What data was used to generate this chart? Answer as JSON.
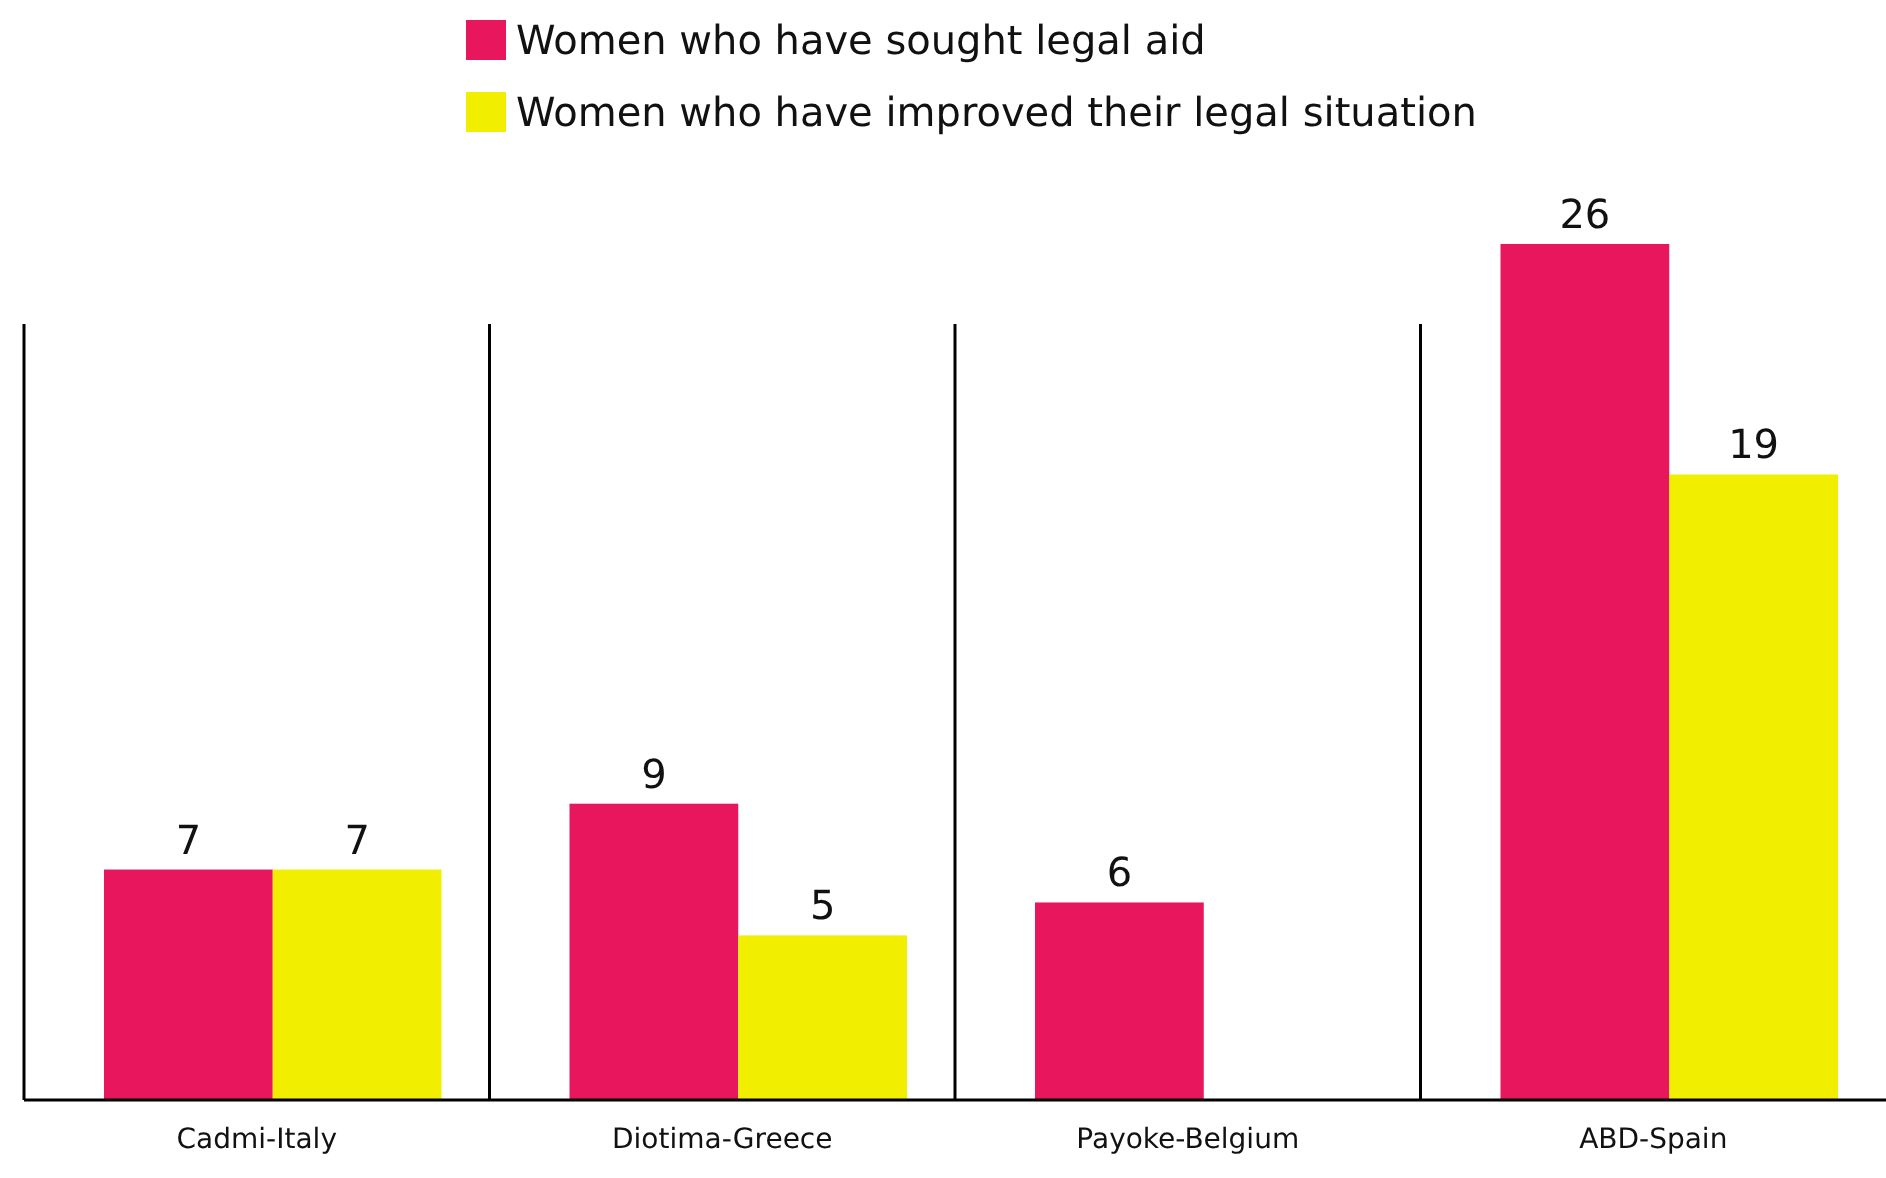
{
  "chart_data": {
    "type": "bar",
    "categories": [
      "Cadmi-Italy",
      "Diotima-Greece",
      "Payoke-Belgium",
      "ABD-Spain"
    ],
    "series": [
      {
        "name": "Women who have sought legal aid",
        "color": "#e8175d",
        "values": [
          7,
          9,
          6,
          26
        ]
      },
      {
        "name": "Women who have improved their legal situation",
        "color": "#f2ee00",
        "values": [
          7,
          5,
          null,
          19
        ]
      }
    ],
    "data_labels": true,
    "legend": "top",
    "grid": false
  }
}
